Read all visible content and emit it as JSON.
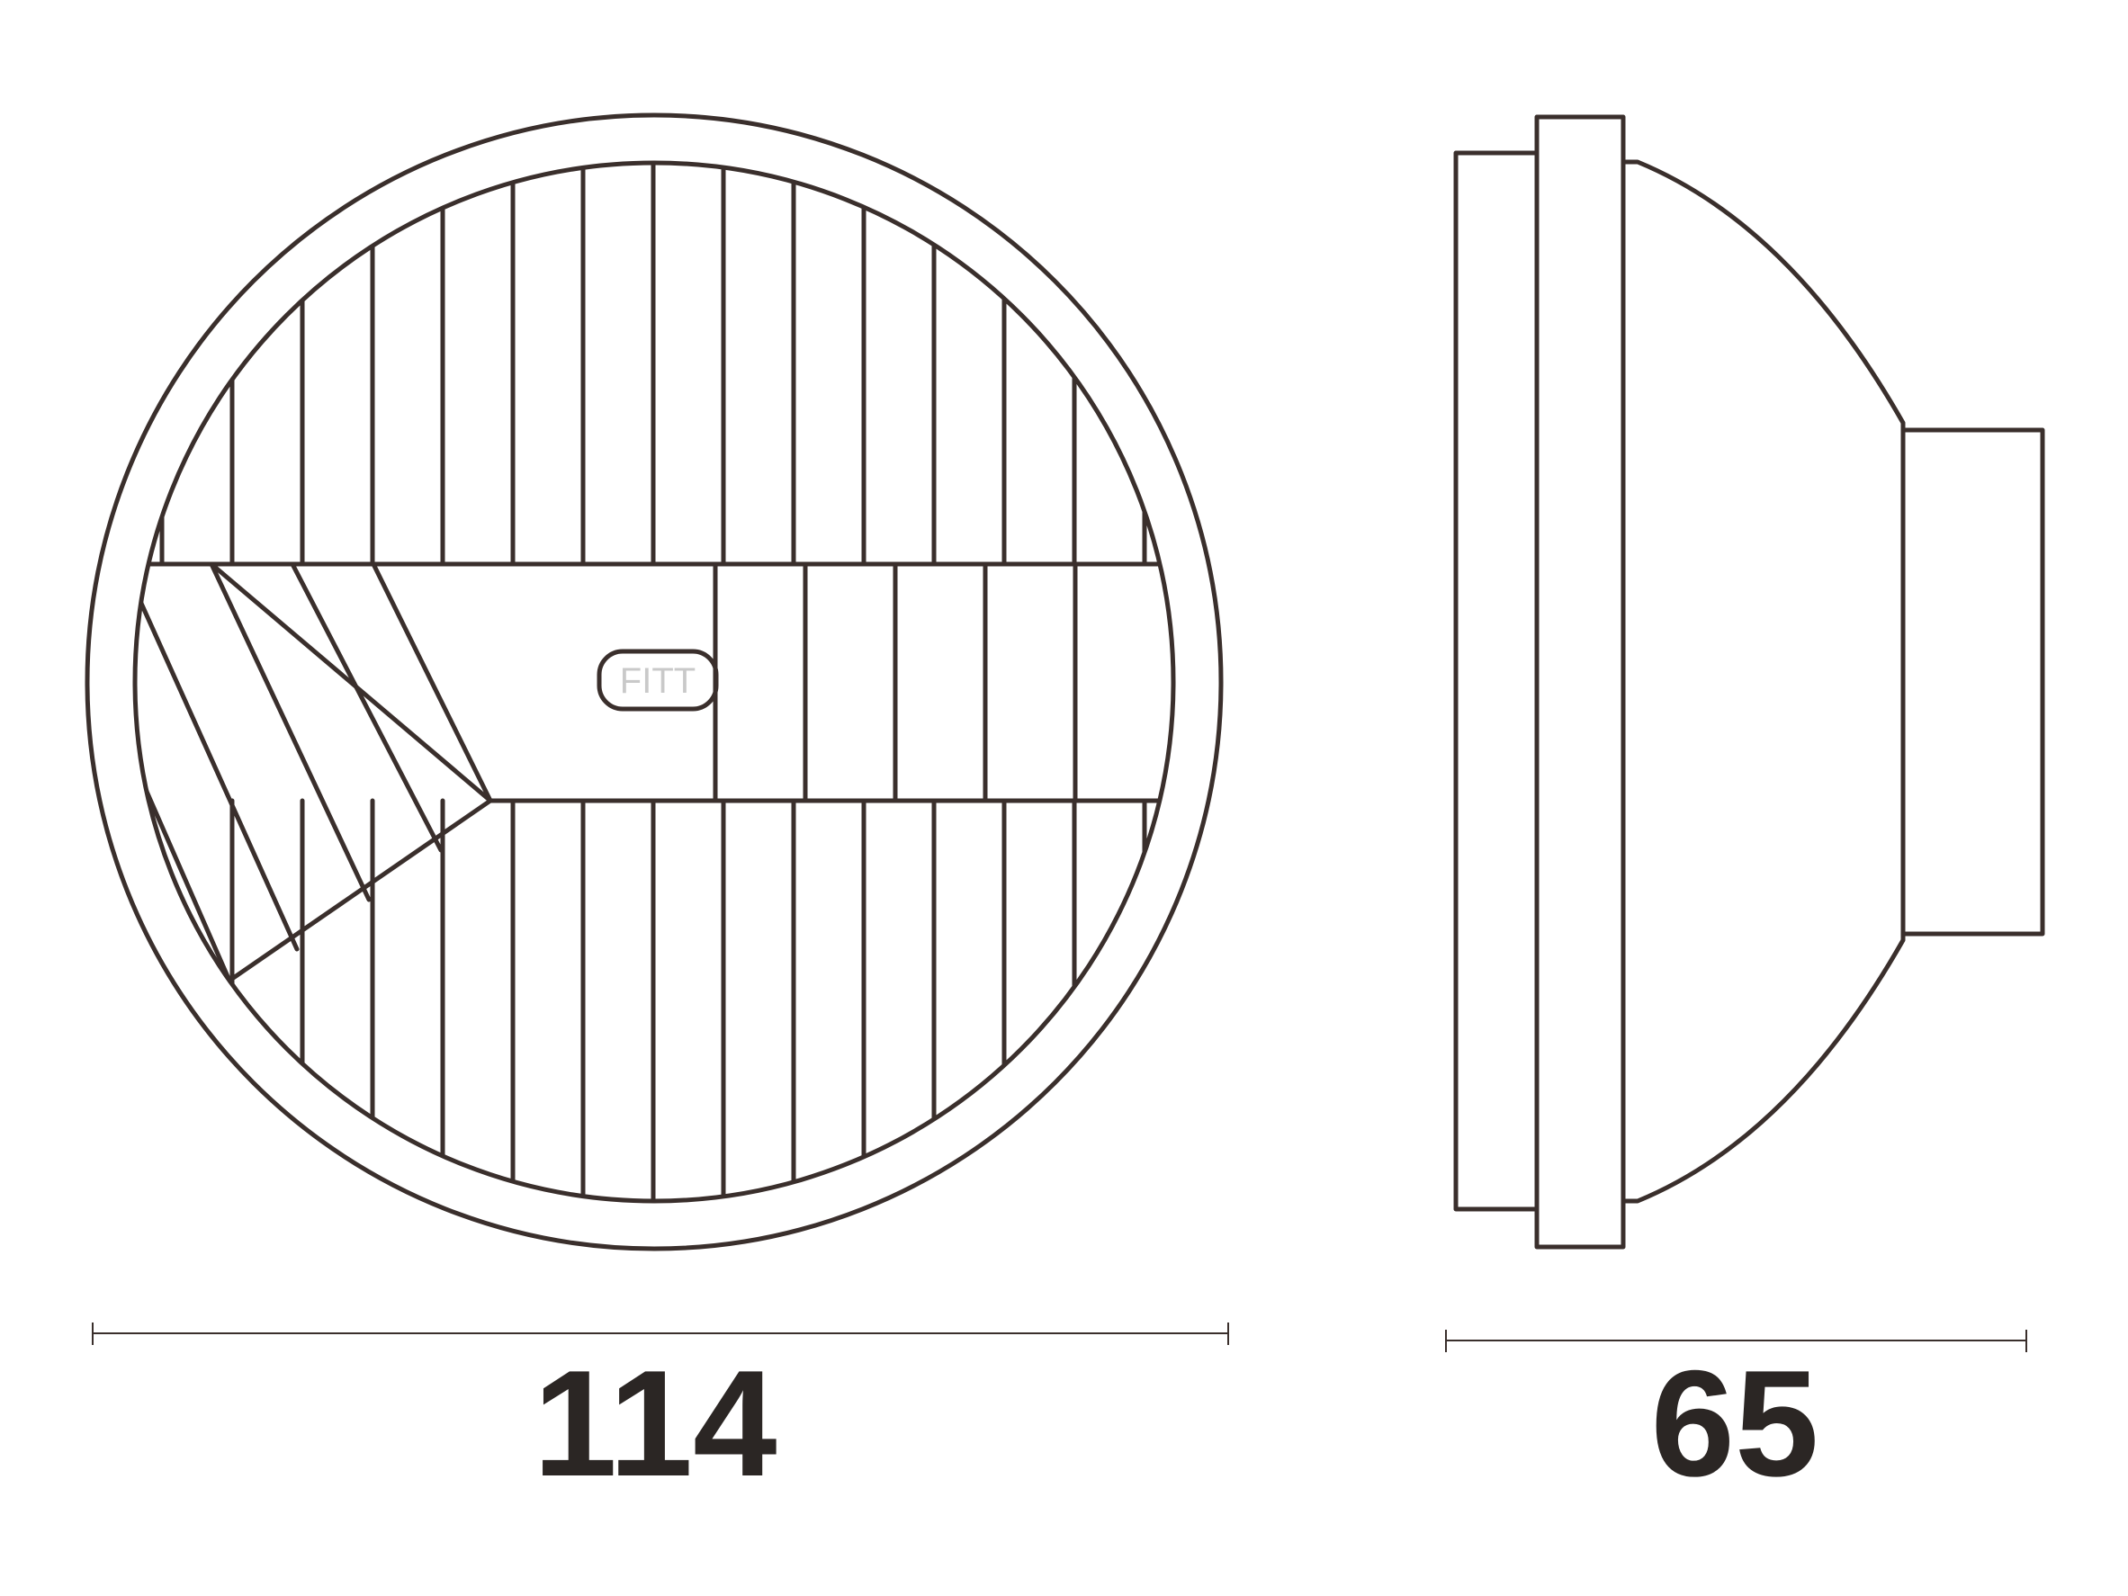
{
  "front_view": {
    "badge_text": "FITT"
  },
  "dimensions": {
    "width_label": "114",
    "depth_label": "65"
  },
  "colors": {
    "line": "#3a2f2c",
    "text": "#2b2624",
    "badge_text": "#c9c9c9"
  }
}
